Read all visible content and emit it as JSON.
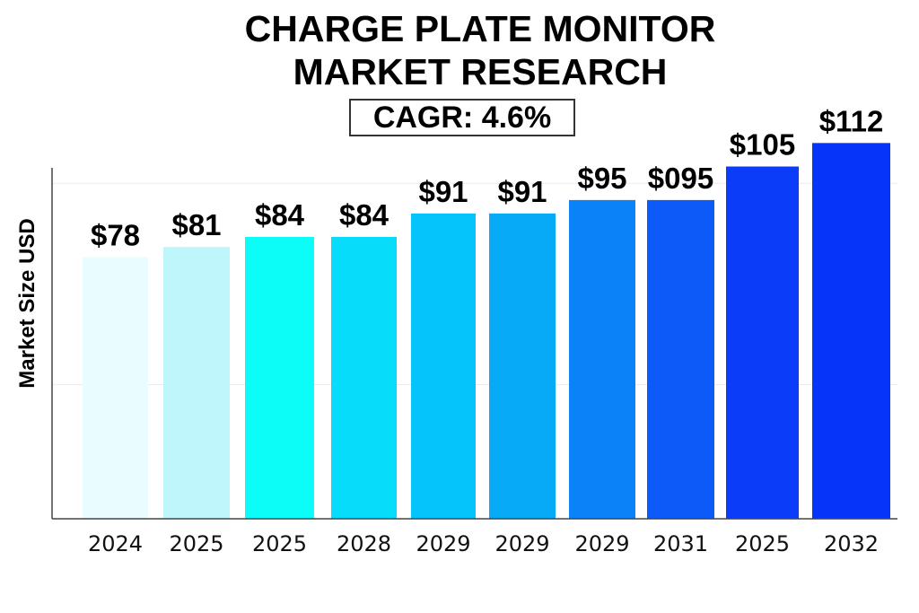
{
  "title_lines": [
    "CHARGE PLATE MONITOR",
    "MARKET RESEARCH"
  ],
  "cagr": "CAGR: 4.6%",
  "chart_data": {
    "type": "bar",
    "title": "CHARGE PLATE MONITOR MARKET RESEARCH",
    "subtitle": "CAGR: 4.6%",
    "ylabel": "Market Size USD",
    "xlabel": "",
    "categories": [
      "2024",
      "2025",
      "2025",
      "2028",
      "2029",
      "2029",
      "2029",
      "2031",
      "2025",
      "2032"
    ],
    "values": [
      78,
      81,
      84,
      84,
      91,
      91,
      95,
      95,
      105,
      112
    ],
    "data_labels": [
      "$78",
      "$81",
      "$84",
      "$84",
      "$91",
      "$91",
      "$95",
      "$095",
      "$105",
      "$112"
    ],
    "ylim": [
      0,
      126
    ],
    "grid": true,
    "legend": "none",
    "bar_colors": [
      "#e9fcff",
      "#bff6fb",
      "#0cfcf8",
      "#08dcfb",
      "#05c4fb",
      "#06aaf7",
      "#0b82f7",
      "#0d5af8",
      "#0b3df8",
      "#0734f9"
    ],
    "axis_color": "#444444",
    "grid_color": "#ececec"
  }
}
